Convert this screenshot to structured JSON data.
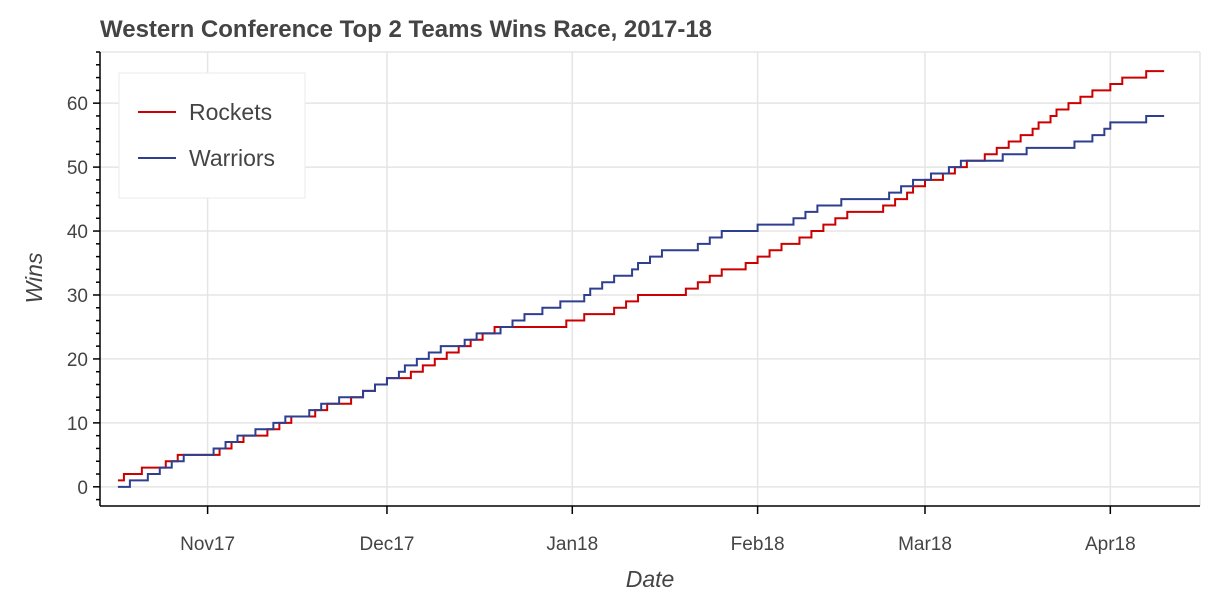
{
  "chart_data": {
    "type": "line",
    "title": "Western Conference Top 2 Teams Wins Race, 2017-18",
    "xlabel": "Date",
    "ylabel": "Wins",
    "x_axis_type": "datetime",
    "xlim": [
      "2017-10-14",
      "2018-04-16"
    ],
    "ylim": [
      -3,
      68
    ],
    "x_ticks": [
      {
        "date": "2017-11-01",
        "label": "Nov17"
      },
      {
        "date": "2017-12-01",
        "label": "Dec17"
      },
      {
        "date": "2018-01-01",
        "label": "Jan18"
      },
      {
        "date": "2018-02-01",
        "label": "Feb18"
      },
      {
        "date": "2018-03-01",
        "label": "Mar18"
      },
      {
        "date": "2018-04-01",
        "label": "Apr18"
      }
    ],
    "y_ticks": [
      0,
      10,
      20,
      30,
      40,
      50,
      60
    ],
    "grid": true,
    "legend_position": "top-left",
    "series": [
      {
        "name": "Rockets",
        "color": "#cc0000",
        "step": "after",
        "points": [
          [
            "2017-10-17",
            1
          ],
          [
            "2017-10-18",
            2
          ],
          [
            "2017-10-21",
            3
          ],
          [
            "2017-10-25",
            4
          ],
          [
            "2017-10-27",
            5
          ],
          [
            "2017-11-03",
            6
          ],
          [
            "2017-11-05",
            7
          ],
          [
            "2017-11-07",
            8
          ],
          [
            "2017-11-11",
            9
          ],
          [
            "2017-11-13",
            10
          ],
          [
            "2017-11-15",
            11
          ],
          [
            "2017-11-19",
            12
          ],
          [
            "2017-11-21",
            13
          ],
          [
            "2017-11-25",
            14
          ],
          [
            "2017-11-27",
            15
          ],
          [
            "2017-11-29",
            16
          ],
          [
            "2017-12-01",
            17
          ],
          [
            "2017-12-05",
            18
          ],
          [
            "2017-12-07",
            19
          ],
          [
            "2017-12-09",
            20
          ],
          [
            "2017-12-11",
            21
          ],
          [
            "2017-12-13",
            22
          ],
          [
            "2017-12-15",
            23
          ],
          [
            "2017-12-17",
            24
          ],
          [
            "2017-12-19",
            25
          ],
          [
            "2017-12-31",
            26
          ],
          [
            "2018-01-03",
            27
          ],
          [
            "2018-01-08",
            28
          ],
          [
            "2018-01-10",
            29
          ],
          [
            "2018-01-12",
            30
          ],
          [
            "2018-01-20",
            31
          ],
          [
            "2018-01-22",
            32
          ],
          [
            "2018-01-24",
            33
          ],
          [
            "2018-01-26",
            34
          ],
          [
            "2018-01-30",
            35
          ],
          [
            "2018-02-01",
            36
          ],
          [
            "2018-02-03",
            37
          ],
          [
            "2018-02-05",
            38
          ],
          [
            "2018-02-08",
            39
          ],
          [
            "2018-02-10",
            40
          ],
          [
            "2018-02-12",
            41
          ],
          [
            "2018-02-14",
            42
          ],
          [
            "2018-02-16",
            43
          ],
          [
            "2018-02-22",
            44
          ],
          [
            "2018-02-24",
            45
          ],
          [
            "2018-02-26",
            46
          ],
          [
            "2018-02-27",
            47
          ],
          [
            "2018-03-01",
            48
          ],
          [
            "2018-03-04",
            49
          ],
          [
            "2018-03-06",
            50
          ],
          [
            "2018-03-08",
            51
          ],
          [
            "2018-03-11",
            52
          ],
          [
            "2018-03-13",
            53
          ],
          [
            "2018-03-15",
            54
          ],
          [
            "2018-03-17",
            55
          ],
          [
            "2018-03-19",
            56
          ],
          [
            "2018-03-20",
            57
          ],
          [
            "2018-03-22",
            58
          ],
          [
            "2018-03-23",
            59
          ],
          [
            "2018-03-25",
            60
          ],
          [
            "2018-03-27",
            61
          ],
          [
            "2018-03-29",
            62
          ],
          [
            "2018-04-01",
            63
          ],
          [
            "2018-04-03",
            64
          ],
          [
            "2018-04-07",
            65
          ],
          [
            "2018-04-10",
            65
          ]
        ]
      },
      {
        "name": "Warriors",
        "color": "#2e3f8f",
        "step": "after",
        "points": [
          [
            "2017-10-17",
            0
          ],
          [
            "2017-10-19",
            1
          ],
          [
            "2017-10-22",
            2
          ],
          [
            "2017-10-24",
            3
          ],
          [
            "2017-10-26",
            4
          ],
          [
            "2017-10-28",
            5
          ],
          [
            "2017-11-02",
            6
          ],
          [
            "2017-11-04",
            7
          ],
          [
            "2017-11-06",
            8
          ],
          [
            "2017-11-09",
            9
          ],
          [
            "2017-11-12",
            10
          ],
          [
            "2017-11-14",
            11
          ],
          [
            "2017-11-18",
            12
          ],
          [
            "2017-11-20",
            13
          ],
          [
            "2017-11-23",
            14
          ],
          [
            "2017-11-27",
            15
          ],
          [
            "2017-11-29",
            16
          ],
          [
            "2017-12-01",
            17
          ],
          [
            "2017-12-03",
            18
          ],
          [
            "2017-12-04",
            19
          ],
          [
            "2017-12-06",
            20
          ],
          [
            "2017-12-08",
            21
          ],
          [
            "2017-12-10",
            22
          ],
          [
            "2017-12-14",
            23
          ],
          [
            "2017-12-16",
            24
          ],
          [
            "2017-12-20",
            25
          ],
          [
            "2017-12-22",
            26
          ],
          [
            "2017-12-24",
            27
          ],
          [
            "2017-12-27",
            28
          ],
          [
            "2017-12-30",
            29
          ],
          [
            "2018-01-03",
            30
          ],
          [
            "2018-01-04",
            31
          ],
          [
            "2018-01-06",
            32
          ],
          [
            "2018-01-08",
            33
          ],
          [
            "2018-01-11",
            34
          ],
          [
            "2018-01-12",
            35
          ],
          [
            "2018-01-14",
            36
          ],
          [
            "2018-01-16",
            37
          ],
          [
            "2018-01-22",
            38
          ],
          [
            "2018-01-24",
            39
          ],
          [
            "2018-01-26",
            40
          ],
          [
            "2018-02-01",
            41
          ],
          [
            "2018-02-07",
            42
          ],
          [
            "2018-02-09",
            43
          ],
          [
            "2018-02-11",
            44
          ],
          [
            "2018-02-15",
            45
          ],
          [
            "2018-02-23",
            46
          ],
          [
            "2018-02-25",
            47
          ],
          [
            "2018-02-27",
            48
          ],
          [
            "2018-03-02",
            49
          ],
          [
            "2018-03-05",
            50
          ],
          [
            "2018-03-07",
            51
          ],
          [
            "2018-03-14",
            52
          ],
          [
            "2018-03-18",
            53
          ],
          [
            "2018-03-26",
            54
          ],
          [
            "2018-03-29",
            55
          ],
          [
            "2018-03-31",
            56
          ],
          [
            "2018-04-01",
            57
          ],
          [
            "2018-04-07",
            58
          ],
          [
            "2018-04-10",
            58
          ]
        ]
      }
    ]
  }
}
